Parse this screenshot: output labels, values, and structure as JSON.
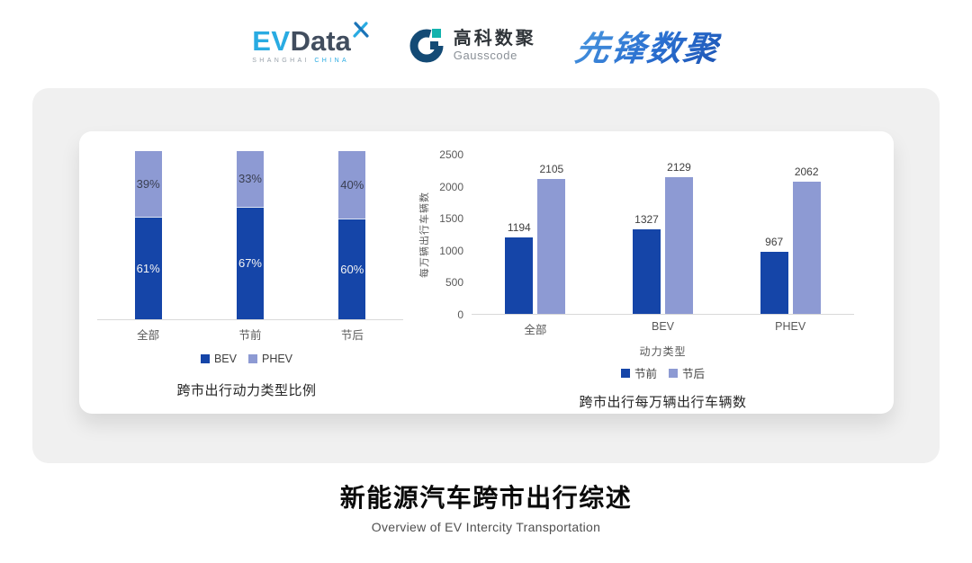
{
  "header": {
    "evdata": {
      "ev": "EV",
      "data": "Data",
      "sub_left": "SHANGHAI",
      "sub_right": "CHINA"
    },
    "gausscode": {
      "cn": "高科数聚",
      "en": "Gausscode"
    },
    "pioneer": {
      "text": "先锋数聚"
    }
  },
  "colors": {
    "series_dark_blue": "#1545a8",
    "series_light_blue": "#8d9ad3",
    "axis_line": "#d9d9d9",
    "accent_teal": "#29abe2",
    "logo_navy": "#134a75",
    "logo_teal": "#12b2ad"
  },
  "chart_data": [
    {
      "type": "bar",
      "subtype": "stacked-100",
      "title": "跨市出行动力类型比例",
      "categories": [
        "全部",
        "节前",
        "节后"
      ],
      "series": [
        {
          "name": "BEV",
          "values": [
            61,
            67,
            60
          ],
          "labels": [
            "61%",
            "67%",
            "60%"
          ],
          "color": "#1545a8",
          "position": "bottom"
        },
        {
          "name": "PHEV",
          "values": [
            39,
            33,
            40
          ],
          "labels": [
            "39%",
            "33%",
            "40%"
          ],
          "color": "#8d9ad3",
          "position": "top"
        }
      ],
      "xlabel": "",
      "ylabel": "",
      "ylim": [
        0,
        100
      ],
      "grid": false,
      "legend_position": "bottom"
    },
    {
      "type": "bar",
      "subtype": "grouped",
      "title": "跨市出行每万辆出行车辆数",
      "categories": [
        "全部",
        "BEV",
        "PHEV"
      ],
      "series": [
        {
          "name": "节前",
          "values": [
            1194,
            1327,
            967
          ],
          "color": "#1545a8"
        },
        {
          "name": "节后",
          "values": [
            2105,
            2129,
            2062
          ],
          "color": "#8d9ad3"
        }
      ],
      "xlabel": "动力类型",
      "ylabel": "每万辆出行车辆数",
      "yticks": [
        0,
        500,
        1000,
        1500,
        2000,
        2500
      ],
      "ylim": [
        0,
        2500
      ],
      "grid": false,
      "legend_position": "bottom"
    }
  ],
  "footer": {
    "title": "新能源汽车跨市出行综述",
    "subtitle": "Overview of EV Intercity Transportation"
  }
}
